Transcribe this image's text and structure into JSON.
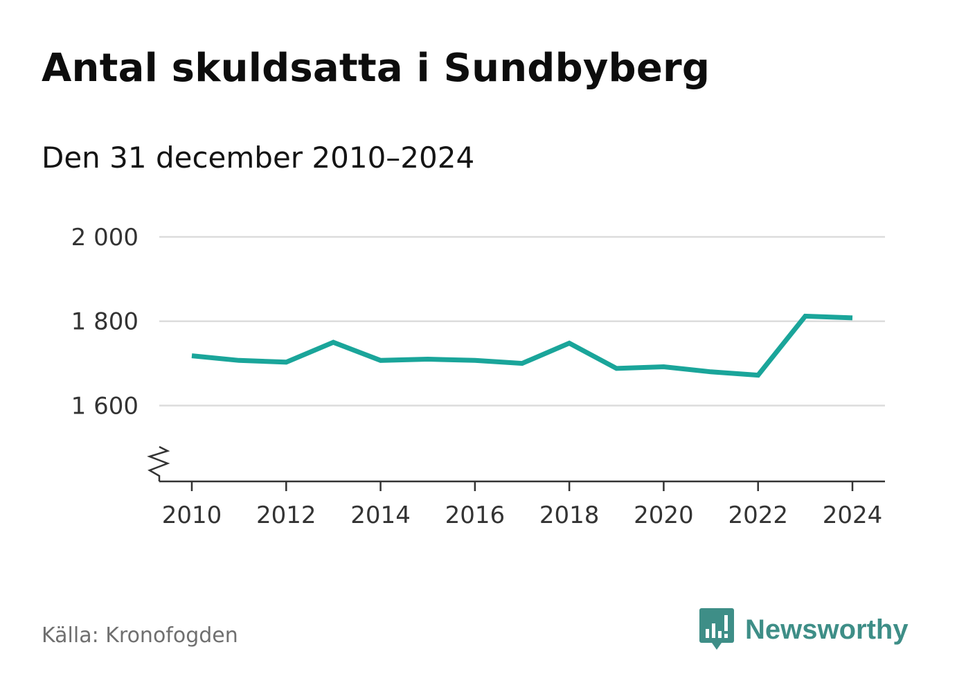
{
  "title": "Antal skuldsatta i Sundbyberg",
  "subtitle": "Den 31 december 2010–2024",
  "source": "Källa: Kronofogden",
  "brand": {
    "name": "Newsworthy",
    "icon": "chart-speech-bubble-icon",
    "color": "#3e8e87"
  },
  "chart_data": {
    "type": "line",
    "title": "Antal skuldsatta i Sundbyberg",
    "subtitle": "Den 31 december 2010–2024",
    "xlabel": "",
    "ylabel": "",
    "x": [
      2010,
      2011,
      2012,
      2013,
      2014,
      2015,
      2016,
      2017,
      2018,
      2019,
      2020,
      2021,
      2022,
      2023,
      2024
    ],
    "series": [
      {
        "name": "Antal skuldsatta",
        "color": "#1aa59a",
        "values": [
          1718,
          1707,
          1703,
          1750,
          1707,
          1710,
          1707,
          1700,
          1748,
          1688,
          1692,
          1680,
          1672,
          1812,
          1808
        ]
      }
    ],
    "ylim": [
      1420,
      2000
    ],
    "yticks": [
      1600,
      1800,
      2000
    ],
    "ytick_labels": [
      "1 600",
      "1 800",
      "2 000"
    ],
    "xticks": [
      2010,
      2012,
      2014,
      2016,
      2018,
      2020,
      2022,
      2024
    ],
    "xtick_labels": [
      "2010",
      "2012",
      "2014",
      "2016",
      "2018",
      "2020",
      "2022",
      "2024"
    ],
    "grid": true,
    "axis_break": true,
    "legend": "none"
  }
}
